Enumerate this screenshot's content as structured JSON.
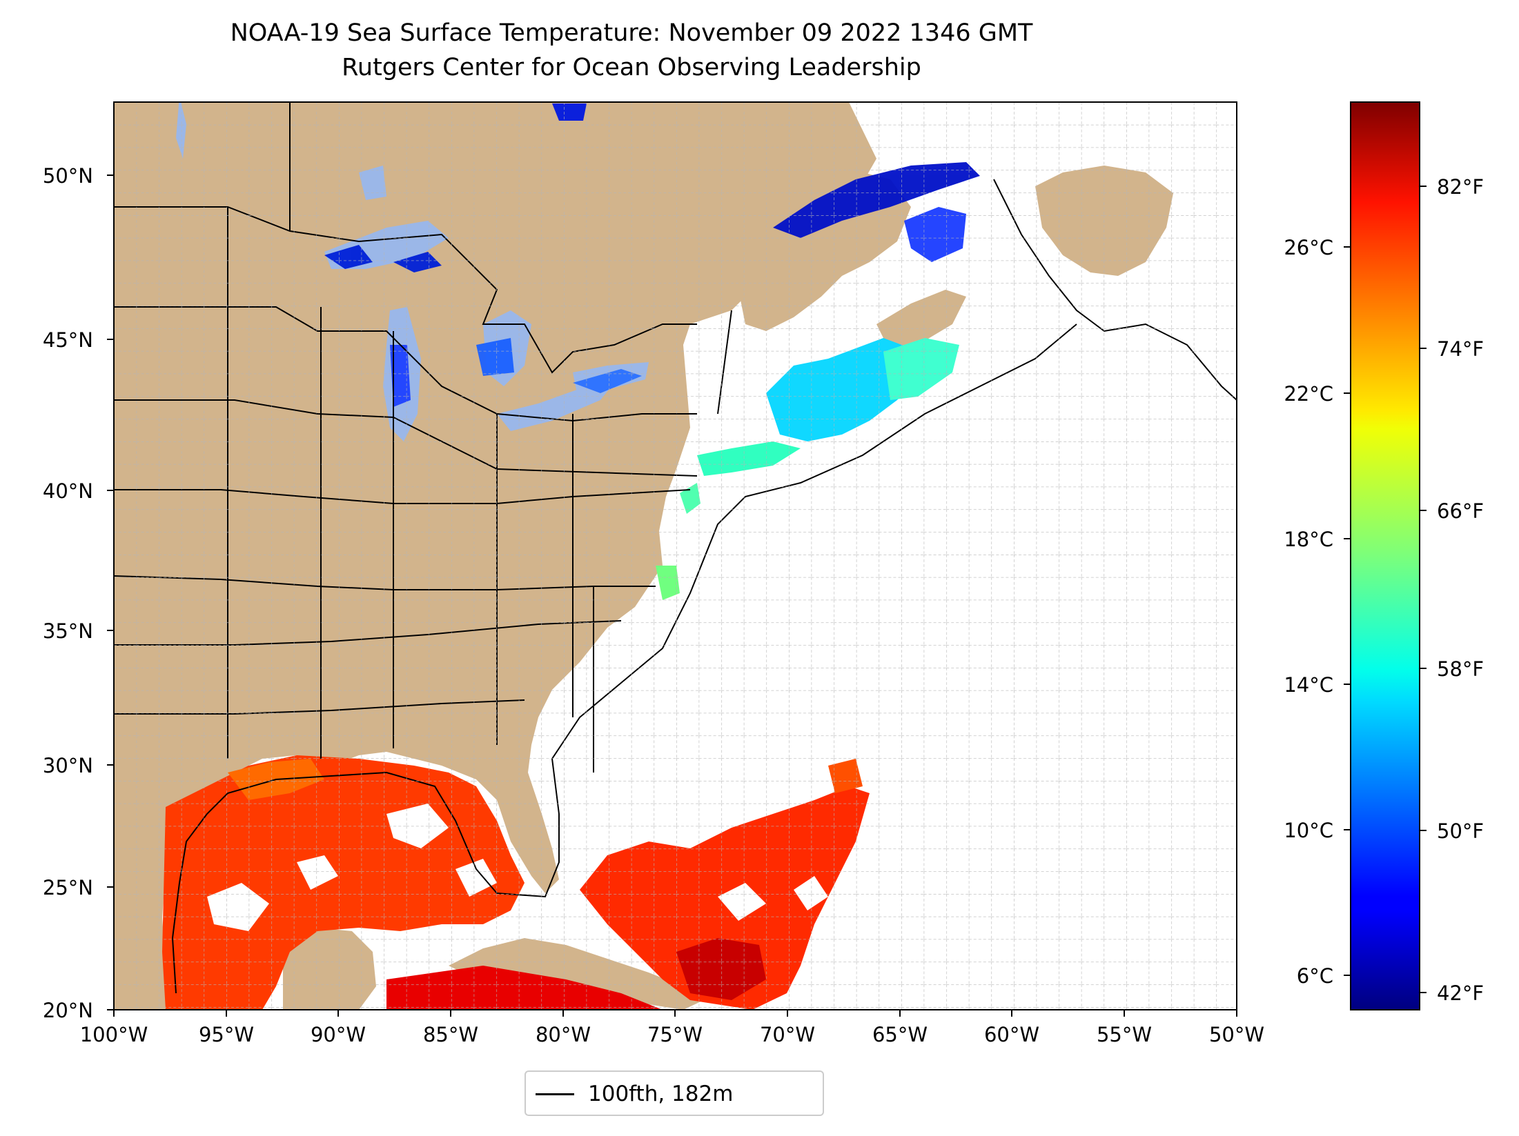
{
  "title": "NOAA-19 Sea Surface Temperature: November 09 2022 1346 GMT",
  "subtitle": "Rutgers Center for Ocean Observing Leadership",
  "map": {
    "lon_range": [
      -100,
      -50
    ],
    "lat_range": [
      20,
      52.3
    ],
    "lon_ticks": [
      "100°W",
      "95°W",
      "90°W",
      "85°W",
      "80°W",
      "75°W",
      "70°W",
      "65°W",
      "60°W",
      "55°W",
      "50°W"
    ],
    "lat_ticks": [
      "20°N",
      "25°N",
      "30°N",
      "35°N",
      "40°N",
      "45°N",
      "50°N"
    ],
    "land_color": "#d2b48c",
    "lake_color": "#9bb7e8",
    "ocean_color": "#ffffff",
    "grid": true
  },
  "colorbar": {
    "colormap": "jet",
    "celsius_ticks": [
      "26°C",
      "22°C",
      "18°C",
      "14°C",
      "10°C",
      "6°C"
    ],
    "fahrenheit_ticks": [
      "82°F",
      "74°F",
      "66°F",
      "58°F",
      "50°F",
      "42°F"
    ]
  },
  "legend": {
    "label": "100fth, 182m",
    "line_color": "#000000"
  }
}
